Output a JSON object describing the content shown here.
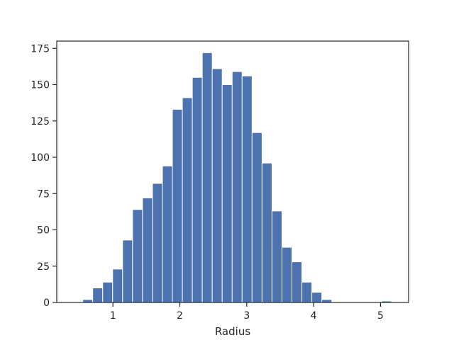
{
  "chart_data": {
    "type": "bar",
    "subtype": "histogram",
    "title": "",
    "xlabel": "Radius",
    "ylabel": "",
    "bin_edges": [
      0.3999,
      0.5488,
      0.6977,
      0.8466,
      0.9955,
      1.1444,
      1.2933,
      1.4422,
      1.5911,
      1.74,
      1.8889,
      2.0378,
      2.1867,
      2.3356,
      2.4845,
      2.6334,
      2.7823,
      2.9312,
      3.0801,
      3.229,
      3.3779,
      3.5268,
      3.6757,
      3.8246,
      3.9735,
      4.1224,
      4.2713,
      4.4202,
      4.5691,
      4.718,
      4.8669,
      5.0158,
      5.1647
    ],
    "counts": [
      0,
      2,
      10,
      14,
      23,
      43,
      64,
      72,
      82,
      94,
      133,
      141,
      155,
      172,
      161,
      150,
      159,
      156,
      117,
      96,
      63,
      38,
      28,
      14,
      7,
      2,
      0,
      0,
      0,
      0,
      0,
      1
    ],
    "xlim": [
      0.16,
      5.42
    ],
    "ylim": [
      0,
      180
    ],
    "xticks": [
      1,
      2,
      3,
      4,
      5
    ],
    "yticks": [
      0,
      25,
      50,
      75,
      100,
      125,
      150,
      175
    ],
    "xtick_labels": [
      "1",
      "2",
      "3",
      "4",
      "5"
    ],
    "ytick_labels": [
      "0",
      "25",
      "50",
      "75",
      "100",
      "125",
      "150",
      "175"
    ],
    "bar_color": "#4c72b0",
    "bar_edge_color": "#ffffff",
    "grid": false,
    "legend": "none"
  }
}
